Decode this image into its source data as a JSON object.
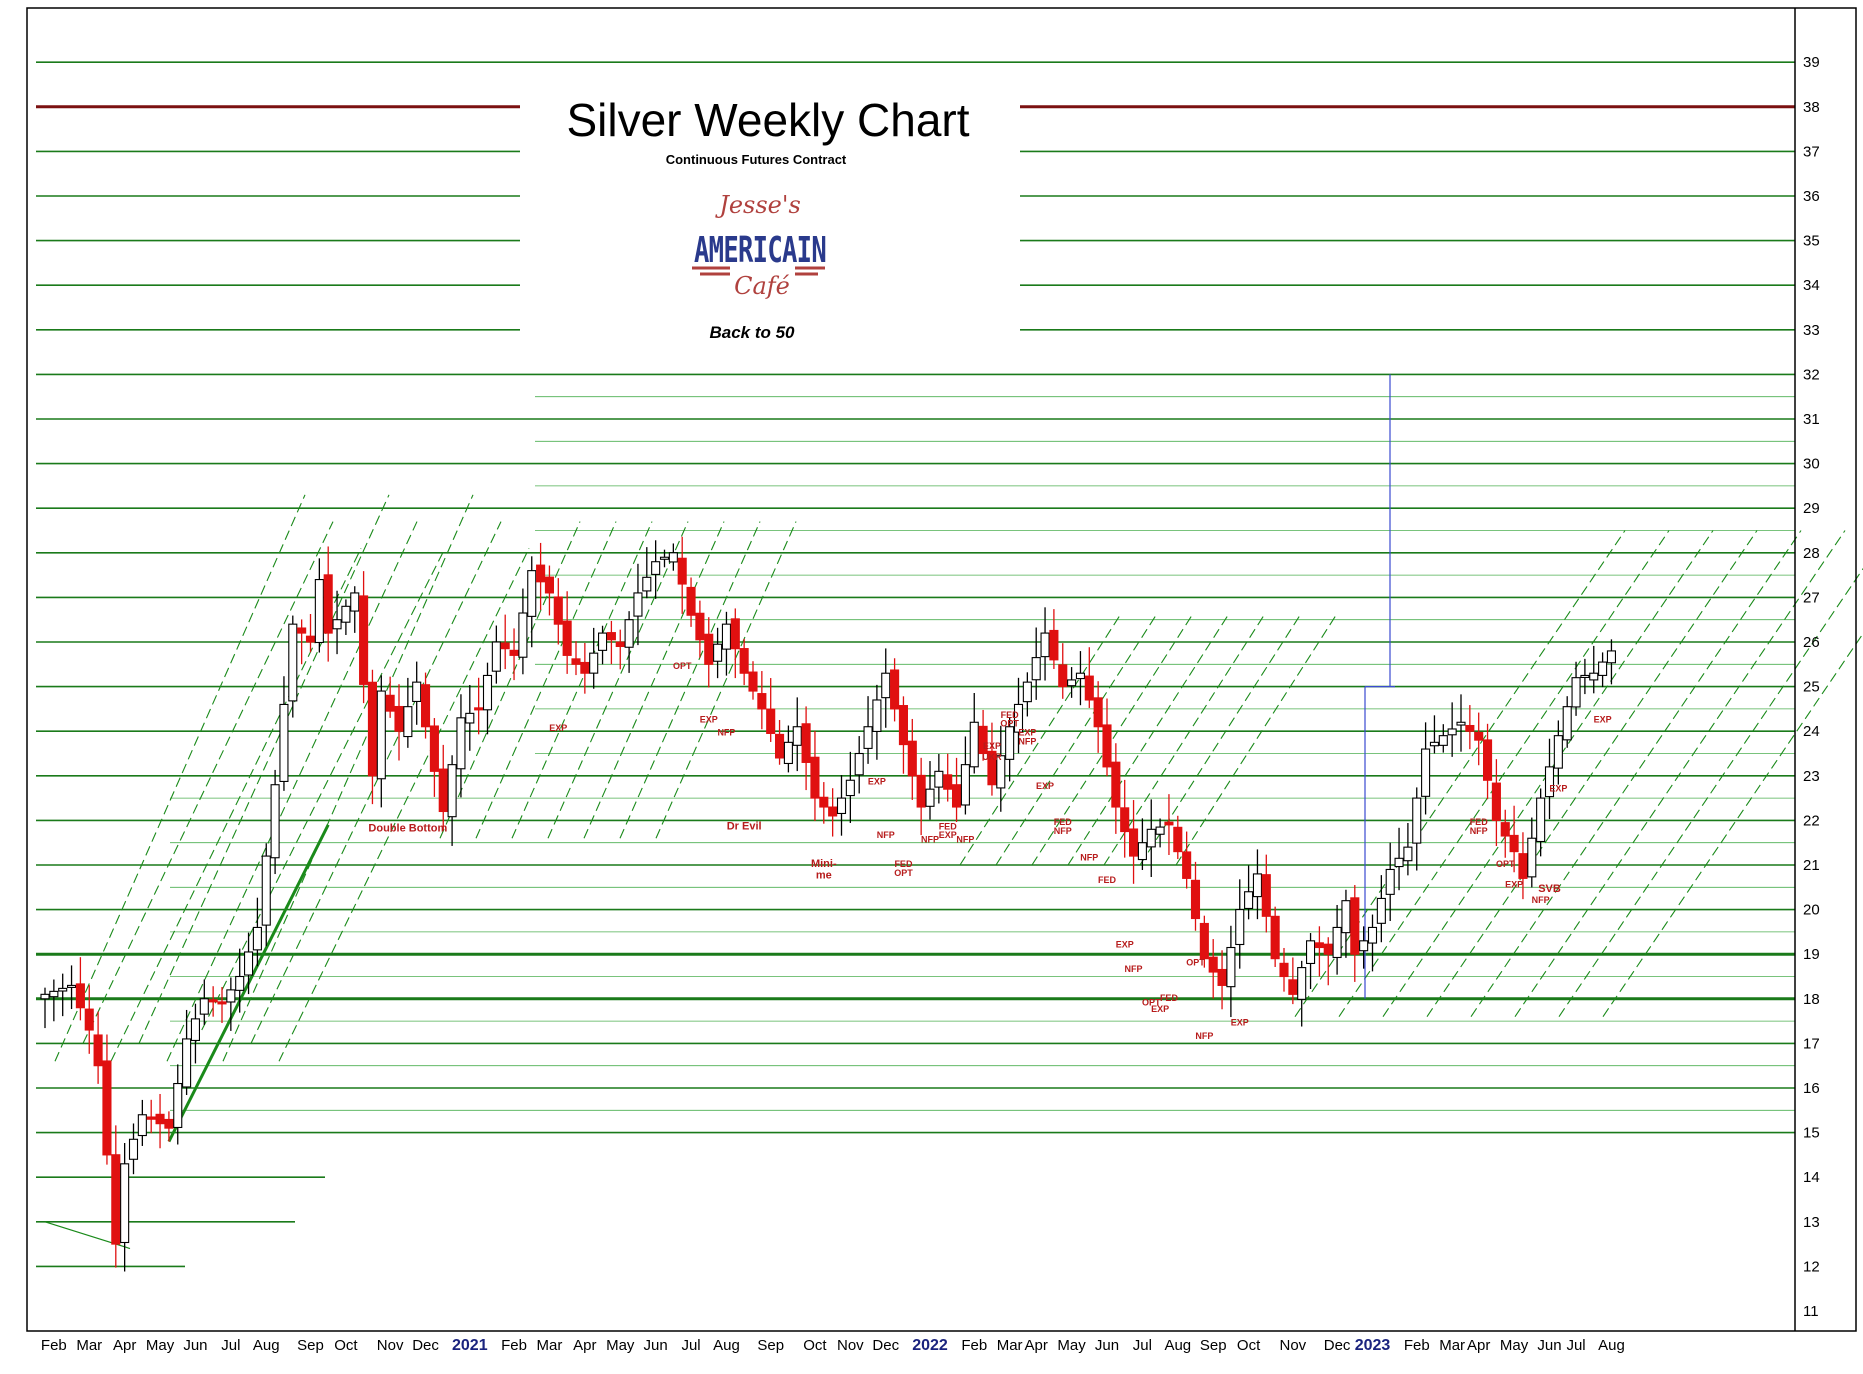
{
  "chart_data": {
    "type": "candlestick",
    "title": "Silver Weekly Chart",
    "subtitle": "Continuous Futures Contract",
    "tagline": "Back to 50",
    "logo": {
      "line1": "Jesse's",
      "line2": "AMERICAIN",
      "line3": "Café"
    },
    "ylim": [
      11,
      39
    ],
    "y_ticks": [
      11,
      12,
      13,
      14,
      15,
      16,
      17,
      18,
      19,
      20,
      21,
      22,
      23,
      24,
      25,
      26,
      27,
      28,
      29,
      30,
      31,
      32,
      33,
      34,
      35,
      36,
      37,
      38,
      39
    ],
    "x_labels": [
      {
        "label": "Feb",
        "week": 1
      },
      {
        "label": "Mar",
        "week": 5
      },
      {
        "label": "Apr",
        "week": 9
      },
      {
        "label": "May",
        "week": 13
      },
      {
        "label": "Jun",
        "week": 17
      },
      {
        "label": "Jul",
        "week": 21
      },
      {
        "label": "Aug",
        "week": 25
      },
      {
        "label": "Sep",
        "week": 30
      },
      {
        "label": "Oct",
        "week": 34
      },
      {
        "label": "Nov",
        "week": 39
      },
      {
        "label": "Dec",
        "week": 43
      },
      {
        "label": "2021",
        "week": 48,
        "year": true
      },
      {
        "label": "Feb",
        "week": 53
      },
      {
        "label": "Mar",
        "week": 57
      },
      {
        "label": "Apr",
        "week": 61
      },
      {
        "label": "May",
        "week": 65
      },
      {
        "label": "Jun",
        "week": 69
      },
      {
        "label": "Jul",
        "week": 73
      },
      {
        "label": "Aug",
        "week": 77
      },
      {
        "label": "Sep",
        "week": 82
      },
      {
        "label": "Oct",
        "week": 87
      },
      {
        "label": "Nov",
        "week": 91
      },
      {
        "label": "Dec",
        "week": 95
      },
      {
        "label": "2022",
        "week": 100,
        "year": true
      },
      {
        "label": "Feb",
        "week": 105
      },
      {
        "label": "Mar",
        "week": 109
      },
      {
        "label": "Apr",
        "week": 112
      },
      {
        "label": "May",
        "week": 116
      },
      {
        "label": "Jun",
        "week": 120
      },
      {
        "label": "Jul",
        "week": 124
      },
      {
        "label": "Aug",
        "week": 128
      },
      {
        "label": "Sep",
        "week": 132
      },
      {
        "label": "Oct",
        "week": 136
      },
      {
        "label": "Nov",
        "week": 141
      },
      {
        "label": "Dec",
        "week": 146
      },
      {
        "label": "2023",
        "week": 150,
        "year": true
      },
      {
        "label": "Feb",
        "week": 155
      },
      {
        "label": "Mar",
        "week": 159
      },
      {
        "label": "Apr",
        "week": 162
      },
      {
        "label": "May",
        "week": 166
      },
      {
        "label": "Jun",
        "week": 170
      },
      {
        "label": "Jul",
        "week": 173
      },
      {
        "label": "Aug",
        "week": 177
      }
    ],
    "price_path": [
      [
        0,
        18.1
      ],
      [
        3,
        18.3
      ],
      [
        5,
        17.3
      ],
      [
        6,
        16.5
      ],
      [
        8,
        12.5
      ],
      [
        9,
        14.3
      ],
      [
        11,
        15.4
      ],
      [
        14,
        15.1
      ],
      [
        16,
        17.1
      ],
      [
        18,
        18.0
      ],
      [
        20,
        17.9
      ],
      [
        22,
        18.5
      ],
      [
        24,
        19.6
      ],
      [
        26,
        22.8
      ],
      [
        28,
        26.4
      ],
      [
        30,
        26.0
      ],
      [
        31,
        27.4
      ],
      [
        32,
        26.2
      ],
      [
        35,
        27.1
      ],
      [
        37,
        23.0
      ],
      [
        38,
        24.9
      ],
      [
        40,
        24.0
      ],
      [
        42,
        25.1
      ],
      [
        44,
        23.1
      ],
      [
        45,
        22.2
      ],
      [
        47,
        24.3
      ],
      [
        49,
        24.5
      ],
      [
        51,
        26.0
      ],
      [
        53,
        25.7
      ],
      [
        55,
        27.6
      ],
      [
        57,
        27.1
      ],
      [
        59,
        25.7
      ],
      [
        61,
        25.3
      ],
      [
        63,
        26.2
      ],
      [
        65,
        25.9
      ],
      [
        67,
        27.1
      ],
      [
        69,
        27.8
      ],
      [
        71,
        28.0
      ],
      [
        73,
        26.6
      ],
      [
        75,
        25.5
      ],
      [
        77,
        26.4
      ],
      [
        79,
        25.3
      ],
      [
        81,
        24.5
      ],
      [
        83,
        23.4
      ],
      [
        85,
        24.1
      ],
      [
        87,
        22.5
      ],
      [
        89,
        22.1
      ],
      [
        91,
        22.9
      ],
      [
        93,
        24.1
      ],
      [
        95,
        25.3
      ],
      [
        97,
        23.7
      ],
      [
        99,
        22.3
      ],
      [
        101,
        23.1
      ],
      [
        103,
        22.3
      ],
      [
        105,
        24.2
      ],
      [
        107,
        22.8
      ],
      [
        109,
        24.1
      ],
      [
        111,
        25.1
      ],
      [
        113,
        26.2
      ],
      [
        115,
        25.0
      ],
      [
        117,
        25.3
      ],
      [
        119,
        24.1
      ],
      [
        121,
        22.3
      ],
      [
        123,
        21.2
      ],
      [
        125,
        21.8
      ],
      [
        127,
        21.9
      ],
      [
        129,
        20.7
      ],
      [
        131,
        18.9
      ],
      [
        133,
        18.3
      ],
      [
        135,
        20.0
      ],
      [
        137,
        20.8
      ],
      [
        139,
        18.9
      ],
      [
        141,
        18.1
      ],
      [
        143,
        19.3
      ],
      [
        145,
        19.0
      ],
      [
        147,
        20.2
      ],
      [
        148,
        19.0
      ],
      [
        150,
        19.6
      ],
      [
        152,
        20.9
      ],
      [
        154,
        21.4
      ],
      [
        156,
        23.6
      ],
      [
        158,
        23.9
      ],
      [
        160,
        24.2
      ],
      [
        162,
        23.8
      ],
      [
        164,
        22.0
      ],
      [
        166,
        21.3
      ],
      [
        167,
        20.7
      ],
      [
        169,
        22.5
      ],
      [
        171,
        23.9
      ],
      [
        173,
        25.2
      ],
      [
        175,
        25.3
      ],
      [
        177,
        25.8
      ]
    ],
    "annotations": [
      {
        "text": "Double Bottom",
        "week": 41,
        "y": 21.75,
        "big": true
      },
      {
        "text": "EXP",
        "week": 58,
        "y": 24.0
      },
      {
        "text": "OPT",
        "week": 72,
        "y": 25.4
      },
      {
        "text": "EXP",
        "week": 75,
        "y": 24.2
      },
      {
        "text": "NFP",
        "week": 77,
        "y": 23.9
      },
      {
        "text": "Dr Evil",
        "week": 79,
        "y": 21.8,
        "big": true
      },
      {
        "text": "Mini-",
        "week": 88,
        "y": 20.95,
        "big": true
      },
      {
        "text": "me",
        "week": 88,
        "y": 20.7,
        "big": true
      },
      {
        "text": "EXP",
        "week": 94,
        "y": 22.8
      },
      {
        "text": "NFP",
        "week": 95,
        "y": 21.6
      },
      {
        "text": "FED",
        "week": 97,
        "y": 20.95
      },
      {
        "text": "OPT",
        "week": 97,
        "y": 20.75
      },
      {
        "text": "NFP",
        "week": 100,
        "y": 21.5
      },
      {
        "text": "FED",
        "week": 102,
        "y": 21.8
      },
      {
        "text": "EXP",
        "week": 102,
        "y": 21.6
      },
      {
        "text": "NFP",
        "week": 104,
        "y": 21.5
      },
      {
        "text": "EXP",
        "week": 107,
        "y": 23.6
      },
      {
        "text": "UKR",
        "week": 107,
        "y": 23.35
      },
      {
        "text": "FED",
        "week": 109,
        "y": 24.3
      },
      {
        "text": "OPT",
        "week": 109,
        "y": 24.1
      },
      {
        "text": "EXP",
        "week": 111,
        "y": 23.9
      },
      {
        "text": "NFP",
        "week": 111,
        "y": 23.7
      },
      {
        "text": "EXP",
        "week": 113,
        "y": 22.7
      },
      {
        "text": "FED",
        "week": 115,
        "y": 21.9
      },
      {
        "text": "NFP",
        "week": 115,
        "y": 21.7
      },
      {
        "text": "NFP",
        "week": 118,
        "y": 21.1
      },
      {
        "text": "FED",
        "week": 120,
        "y": 20.6
      },
      {
        "text": "EXP",
        "week": 122,
        "y": 19.15
      },
      {
        "text": "NFP",
        "week": 123,
        "y": 18.6
      },
      {
        "text": "FED",
        "week": 127,
        "y": 17.95
      },
      {
        "text": "OPT",
        "week": 125,
        "y": 17.85
      },
      {
        "text": "EXP",
        "week": 126,
        "y": 17.7
      },
      {
        "text": "OPT",
        "week": 130,
        "y": 18.75
      },
      {
        "text": "NFP",
        "week": 131,
        "y": 17.1
      },
      {
        "text": "EXP",
        "week": 135,
        "y": 17.4
      },
      {
        "text": "FED",
        "week": 162,
        "y": 21.9
      },
      {
        "text": "NFP",
        "week": 162,
        "y": 21.7
      },
      {
        "text": "OPT",
        "week": 165,
        "y": 20.95
      },
      {
        "text": "EXP",
        "week": 166,
        "y": 20.5
      },
      {
        "text": "NFP",
        "week": 169,
        "y": 20.15
      },
      {
        "text": "SVB",
        "week": 170,
        "y": 20.4,
        "big": true
      },
      {
        "text": "EXP",
        "week": 171,
        "y": 22.65
      },
      {
        "text": "EXP",
        "week": 176,
        "y": 24.2
      }
    ]
  }
}
